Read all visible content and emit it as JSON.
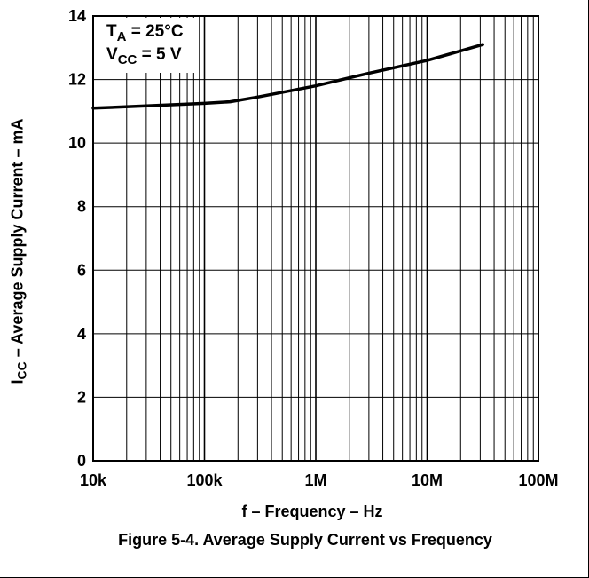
{
  "chart_data": {
    "type": "line",
    "x_scale": "log",
    "xlim": [
      10000,
      100000000
    ],
    "ylim": [
      0,
      14
    ],
    "x_ticks": [
      {
        "value": 10000,
        "label": "10k"
      },
      {
        "value": 100000,
        "label": "100k"
      },
      {
        "value": 1000000,
        "label": "1M"
      },
      {
        "value": 10000000,
        "label": "10M"
      },
      {
        "value": 100000000,
        "label": "100M"
      }
    ],
    "y_ticks": [
      {
        "value": 0,
        "label": "0"
      },
      {
        "value": 2,
        "label": "2"
      },
      {
        "value": 4,
        "label": "4"
      },
      {
        "value": 6,
        "label": "6"
      },
      {
        "value": 8,
        "label": "8"
      },
      {
        "value": 10,
        "label": "10"
      },
      {
        "value": 12,
        "label": "12"
      },
      {
        "value": 14,
        "label": "14"
      }
    ],
    "grid": true,
    "ylabel": {
      "main": "I",
      "sub": "CC",
      "rest": " – Average Supply Current – mA"
    },
    "xlabel": "f – Frequency – Hz",
    "caption": "Figure 5-4. Average Supply Current vs Frequency",
    "annotation": {
      "line1": {
        "main": "T",
        "sub": "A",
        "rest": " = 25°C"
      },
      "line2": {
        "main": "V",
        "sub": "CC",
        "rest": " = 5 V"
      }
    },
    "series": [
      {
        "x": [
          10000,
          30000,
          100000,
          170000,
          300000,
          1000000,
          3000000,
          10000000,
          31600000
        ],
        "y": [
          11.1,
          11.17,
          11.25,
          11.3,
          11.45,
          11.8,
          12.2,
          12.6,
          13.1
        ]
      }
    ]
  }
}
